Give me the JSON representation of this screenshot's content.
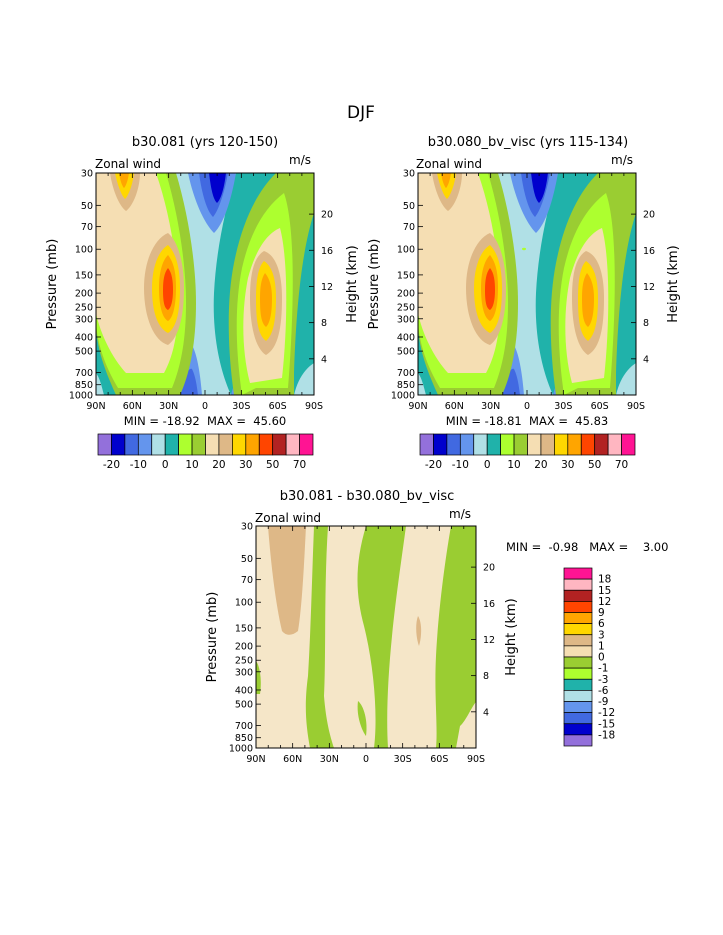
{
  "title": "DJF",
  "colors": {
    "purple": "#9370db",
    "navy": "#0000cd",
    "blue": "#4169e1",
    "lblue": "#6495ed",
    "cyan": "#b0e0e6",
    "teal": "#20b2aa",
    "lgreen": "#adff2f",
    "green": "#9acd32",
    "cream": "#f5deb3",
    "tan": "#deb887",
    "yellow": "#ffd700",
    "orange": "#ffa500",
    "orangered": "#ff4500",
    "red": "#b22222",
    "pink": "#ffb6c1",
    "magenta": "#ff1493",
    "diff_cream": "#f5e6c8"
  },
  "chart_data": [
    {
      "type": "heatmap",
      "title": "b30.081 (yrs 120-150)",
      "left_label": "Zonal wind",
      "right_label": "m/s",
      "ylabel": "Pressure (mb)",
      "ylabel_right": "Height (km)",
      "x_ticks": [
        "90N",
        "60N",
        "30N",
        "0",
        "30S",
        "60S",
        "90S"
      ],
      "y_ticks": [
        "30",
        "50",
        "70",
        "100",
        "150",
        "200",
        "250",
        "300",
        "400",
        "500",
        "700",
        "850",
        "1000"
      ],
      "y_right_ticks": [
        "20",
        "16",
        "12",
        "8",
        "4"
      ],
      "min_max": "MIN = -18.92  MAX =  45.60",
      "colorbar_labels": [
        "-20",
        "-10",
        "0",
        "10",
        "20",
        "30",
        "50",
        "70"
      ]
    },
    {
      "type": "heatmap",
      "title": "b30.080_bv_visc (yrs 115-134)",
      "left_label": "Zonal wind",
      "right_label": "m/s",
      "ylabel": "Pressure (mb)",
      "ylabel_right": "Height (km)",
      "x_ticks": [
        "90N",
        "60N",
        "30N",
        "0",
        "30S",
        "60S",
        "90S"
      ],
      "y_ticks": [
        "30",
        "50",
        "70",
        "100",
        "150",
        "200",
        "250",
        "300",
        "400",
        "500",
        "700",
        "850",
        "1000"
      ],
      "y_right_ticks": [
        "20",
        "16",
        "12",
        "8",
        "4"
      ],
      "min_max": "MIN = -18.81  MAX =  45.83",
      "colorbar_labels": [
        "-20",
        "-10",
        "0",
        "10",
        "20",
        "30",
        "50",
        "70"
      ]
    },
    {
      "type": "heatmap",
      "title": "b30.081 - b30.080_bv_visc",
      "left_label": "Zonal wind",
      "right_label": "m/s",
      "ylabel": "Pressure (mb)",
      "ylabel_right": "Height (km)",
      "x_ticks": [
        "90N",
        "60N",
        "30N",
        "0",
        "30S",
        "60S",
        "90S"
      ],
      "y_ticks": [
        "30",
        "50",
        "70",
        "100",
        "150",
        "200",
        "250",
        "300",
        "400",
        "500",
        "700",
        "850",
        "1000"
      ],
      "y_right_ticks": [
        "20",
        "16",
        "12",
        "8",
        "4"
      ],
      "min_max": "MIN =  -0.98   MAX =    3.00",
      "colorbar_labels": [
        "18",
        "15",
        "12",
        "9",
        "6",
        "3",
        "1",
        "0",
        "-1",
        "-3",
        "-6",
        "-9",
        "-12",
        "-15",
        "-18"
      ]
    }
  ]
}
